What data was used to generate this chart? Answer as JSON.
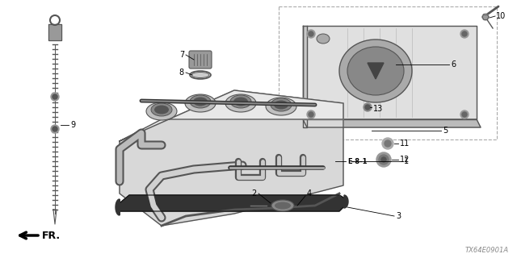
{
  "diagram_code": "TX64E0901A",
  "bg_color": "#ffffff",
  "lc": "#000000",
  "gray_light": "#cccccc",
  "gray_mid": "#999999",
  "gray_dark": "#555555",
  "gray_xdark": "#333333"
}
